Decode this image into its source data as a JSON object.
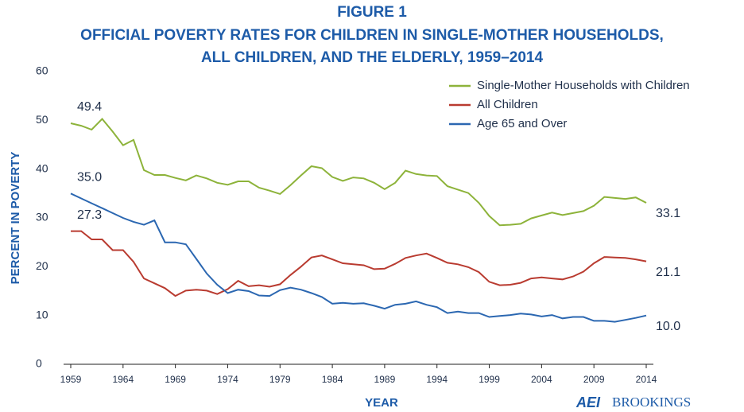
{
  "chart_data": {
    "type": "line",
    "title": [
      "FIGURE 1",
      "OFFICIAL POVERTY RATES FOR CHILDREN IN SINGLE-MOTHER HOUSEHOLDS,",
      "ALL CHILDREN, AND THE ELDERLY, 1959–2014"
    ],
    "xlabel": "YEAR",
    "ylabel": "PERCENT IN POVERTY",
    "logo": [
      "AEI",
      "BROOKINGS"
    ],
    "x": [
      1959,
      1960,
      1961,
      1962,
      1963,
      1964,
      1965,
      1966,
      1967,
      1968,
      1969,
      1970,
      1971,
      1972,
      1973,
      1974,
      1975,
      1976,
      1977,
      1978,
      1979,
      1980,
      1981,
      1982,
      1983,
      1984,
      1985,
      1986,
      1987,
      1988,
      1989,
      1990,
      1991,
      1992,
      1993,
      1994,
      1995,
      1996,
      1997,
      1998,
      1999,
      2000,
      2001,
      2002,
      2003,
      2004,
      2005,
      2006,
      2007,
      2008,
      2009,
      2010,
      2011,
      2012,
      2013,
      2014
    ],
    "xlim": [
      1959,
      2014
    ],
    "xticks": [
      1959,
      1964,
      1969,
      1974,
      1979,
      1984,
      1989,
      1994,
      1999,
      2004,
      2009,
      2014
    ],
    "ylim": [
      0,
      60
    ],
    "yticks": [
      0,
      10,
      20,
      30,
      40,
      50,
      60
    ],
    "legend": "upper right",
    "series": [
      {
        "name": "Single-Mother Households with Children",
        "color": "#8db33a",
        "values": [
          49.4,
          48.9,
          48.1,
          50.3,
          47.7,
          44.9,
          46.0,
          39.8,
          38.8,
          38.8,
          38.2,
          37.7,
          38.7,
          38.1,
          37.2,
          36.8,
          37.5,
          37.5,
          36.2,
          35.6,
          34.9,
          36.7,
          38.7,
          40.6,
          40.2,
          38.4,
          37.6,
          38.3,
          38.1,
          37.2,
          35.9,
          37.2,
          39.7,
          39.0,
          38.7,
          38.6,
          36.5,
          35.8,
          35.1,
          33.1,
          30.4,
          28.5,
          28.6,
          28.8,
          29.9,
          30.5,
          31.1,
          30.6,
          31.0,
          31.4,
          32.5,
          34.3,
          34.1,
          33.9,
          34.2,
          33.1
        ],
        "value_labels": [
          "49.4",
          null,
          null,
          null,
          null,
          null,
          null,
          null,
          null,
          null,
          null,
          null,
          null,
          null,
          null,
          null,
          null,
          null,
          null,
          null,
          null,
          null,
          null,
          null,
          null,
          null,
          null,
          null,
          null,
          null,
          null,
          null,
          null,
          null,
          null,
          null,
          null,
          null,
          null,
          null,
          null,
          null,
          null,
          null,
          null,
          null,
          null,
          null,
          null,
          null,
          null,
          null,
          null,
          null,
          null,
          "33.1"
        ]
      },
      {
        "name": "All Children",
        "color": "#b93b30",
        "values": [
          27.3,
          27.3,
          25.6,
          25.6,
          23.4,
          23.4,
          21.0,
          17.6,
          16.6,
          15.6,
          14.0,
          15.1,
          15.3,
          15.1,
          14.4,
          15.4,
          17.1,
          16.0,
          16.2,
          15.9,
          16.4,
          18.3,
          20.0,
          21.9,
          22.3,
          21.5,
          20.7,
          20.5,
          20.3,
          19.5,
          19.6,
          20.6,
          21.8,
          22.3,
          22.7,
          21.8,
          20.8,
          20.5,
          19.9,
          18.9,
          16.9,
          16.2,
          16.3,
          16.7,
          17.6,
          17.8,
          17.6,
          17.4,
          18.0,
          19.0,
          20.7,
          22.0,
          21.9,
          21.8,
          21.5,
          21.1
        ],
        "value_labels": [
          "27.3",
          null,
          null,
          null,
          null,
          null,
          null,
          null,
          null,
          null,
          null,
          null,
          null,
          null,
          null,
          null,
          null,
          null,
          null,
          null,
          null,
          null,
          null,
          null,
          null,
          null,
          null,
          null,
          null,
          null,
          null,
          null,
          null,
          null,
          null,
          null,
          null,
          null,
          null,
          null,
          null,
          null,
          null,
          null,
          null,
          null,
          null,
          null,
          null,
          null,
          null,
          null,
          null,
          null,
          null,
          "21.1"
        ]
      },
      {
        "name": "Age 65 and Over",
        "color": "#2b67b1",
        "values": [
          35.0,
          34.0,
          33.0,
          32.0,
          31.0,
          30.0,
          29.2,
          28.6,
          29.5,
          25.0,
          25.0,
          24.6,
          21.6,
          18.6,
          16.3,
          14.6,
          15.3,
          15.0,
          14.1,
          14.0,
          15.2,
          15.7,
          15.3,
          14.6,
          13.8,
          12.4,
          12.6,
          12.4,
          12.5,
          12.0,
          11.4,
          12.2,
          12.4,
          12.9,
          12.2,
          11.7,
          10.5,
          10.8,
          10.5,
          10.5,
          9.7,
          9.9,
          10.1,
          10.4,
          10.2,
          9.8,
          10.1,
          9.4,
          9.7,
          9.7,
          8.9,
          8.9,
          8.7,
          9.1,
          9.5,
          10.0
        ],
        "value_labels": [
          "35.0",
          null,
          null,
          null,
          null,
          null,
          null,
          null,
          null,
          null,
          null,
          null,
          null,
          null,
          null,
          null,
          null,
          null,
          null,
          null,
          null,
          null,
          null,
          null,
          null,
          null,
          null,
          null,
          null,
          null,
          null,
          null,
          null,
          null,
          null,
          null,
          null,
          null,
          null,
          null,
          null,
          null,
          null,
          null,
          null,
          null,
          null,
          null,
          null,
          null,
          null,
          null,
          null,
          null,
          null,
          "10.0"
        ]
      }
    ]
  }
}
